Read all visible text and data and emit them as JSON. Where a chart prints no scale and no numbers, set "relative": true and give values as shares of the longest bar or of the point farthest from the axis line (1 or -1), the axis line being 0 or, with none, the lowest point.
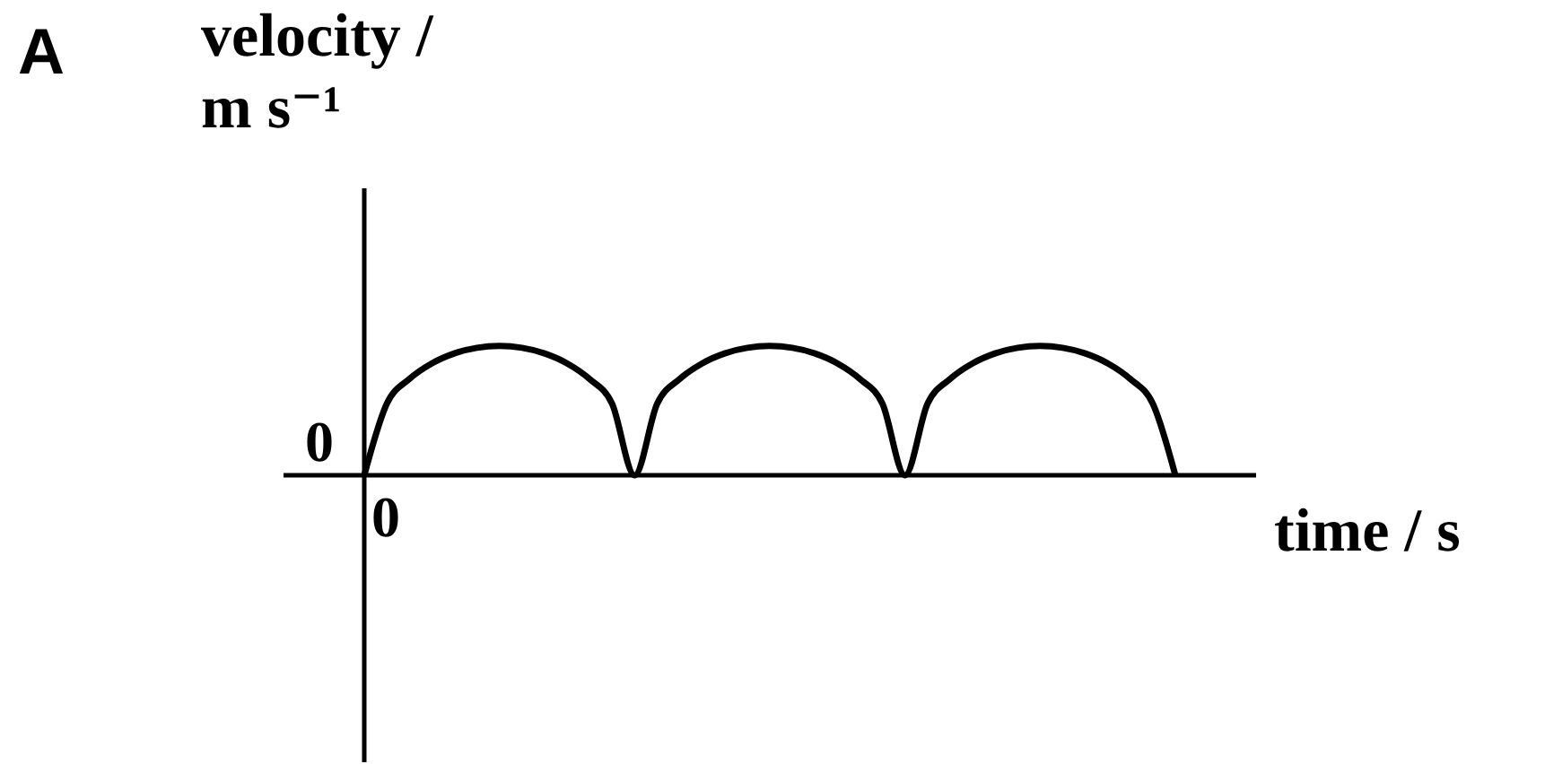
{
  "chart_data": {
    "type": "line",
    "title": "A",
    "xlabel": "time / s",
    "ylabel": "velocity / m s⁻¹",
    "relative": true,
    "annotations": [
      "0",
      "0"
    ],
    "marker": "none",
    "line_style": "solid",
    "categories": [
      null,
      null,
      null,
      null,
      null,
      null,
      null,
      null,
      null,
      null,
      null,
      null,
      null,
      null,
      null,
      null,
      null,
      null,
      null,
      null,
      null,
      null,
      null,
      null,
      null,
      null,
      null,
      null,
      null,
      null,
      null,
      null,
      null,
      null,
      null,
      null,
      null
    ],
    "series": [
      {
        "color": "#000000",
        "values": [
          0,
          0.553,
          0.745,
          0.866,
          0.943,
          0.986,
          1,
          0.986,
          0.943,
          0.866,
          0.745,
          0.553,
          0,
          0.553,
          0.745,
          0.866,
          0.943,
          0.986,
          1,
          0.986,
          0.943,
          0.866,
          0.745,
          0.553,
          0,
          0.553,
          0.745,
          0.866,
          0.943,
          0.986,
          1,
          0.986,
          0.943,
          0.866,
          0.745,
          0.553,
          0
        ]
      }
    ]
  }
}
